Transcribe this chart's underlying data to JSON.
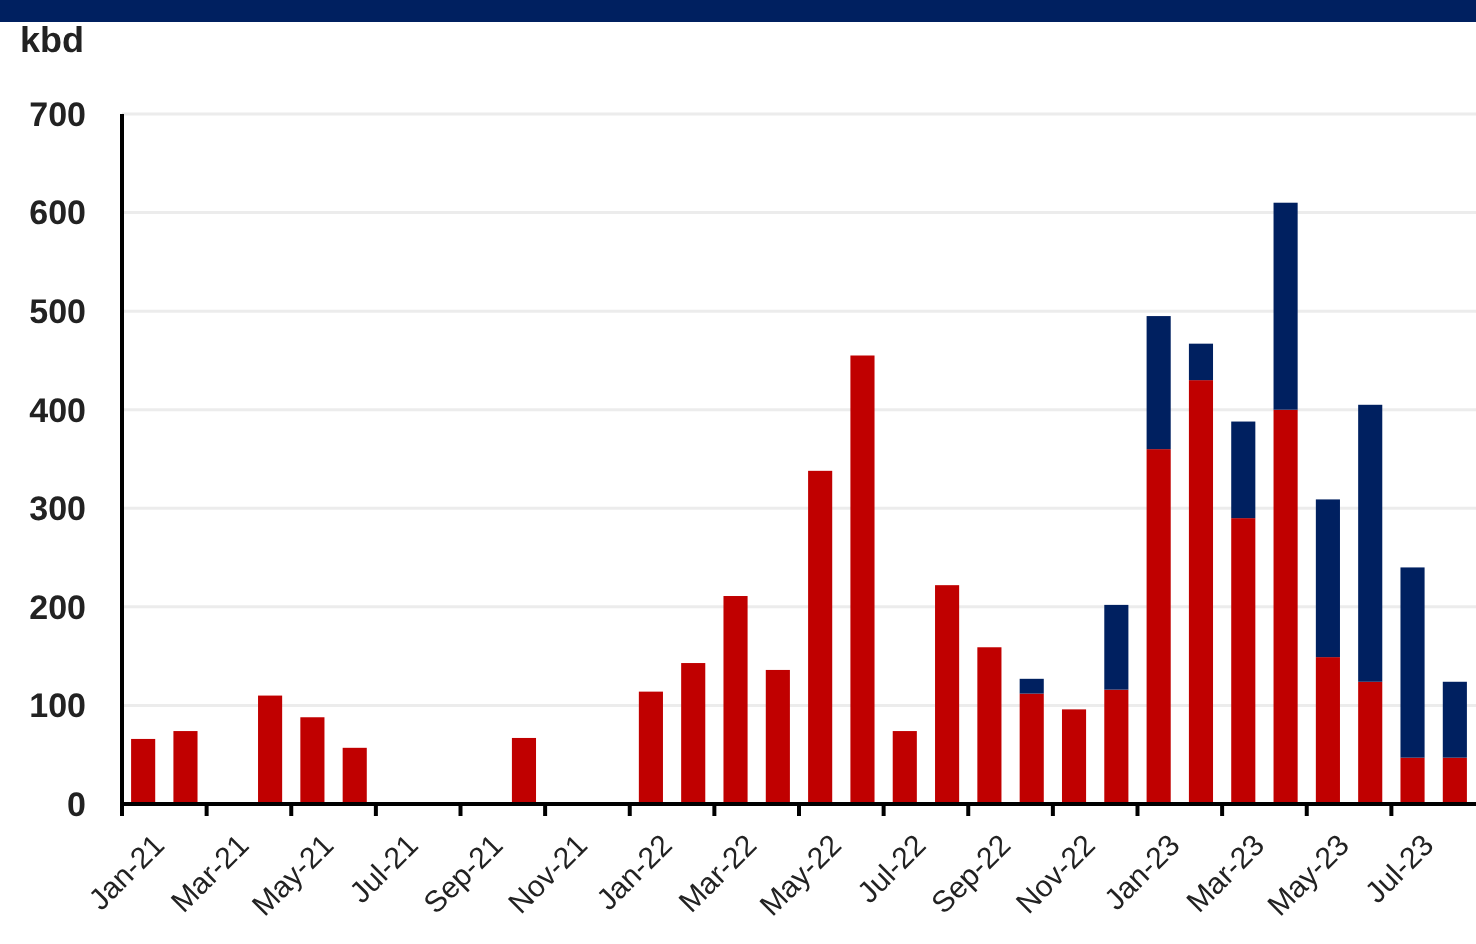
{
  "chart_data": {
    "type": "bar",
    "stacked": true,
    "ylabel": "kbd",
    "categories": [
      "Jan-21",
      null,
      "Mar-21",
      null,
      "May-21",
      null,
      "Jul-21",
      null,
      "Sep-21",
      null,
      "Nov-21",
      null,
      "Jan-22",
      null,
      "Mar-22",
      null,
      "May-22",
      null,
      "Jul-22",
      null,
      "Sep-22",
      null,
      "Nov-22",
      null,
      "Jan-23",
      null,
      "Mar-23",
      null,
      "May-23",
      null,
      "Jul-23",
      null
    ],
    "series": [
      {
        "color": "#c00000",
        "values": [
          66,
          74,
          null,
          110,
          88,
          57,
          null,
          null,
          null,
          67,
          null,
          null,
          114,
          143,
          211,
          136,
          338,
          455,
          74,
          222,
          159,
          112,
          96,
          116,
          360,
          430,
          290,
          400,
          149,
          124,
          47,
          47
        ]
      },
      {
        "color": "#002060",
        "values": [
          null,
          null,
          null,
          null,
          null,
          null,
          null,
          null,
          null,
          null,
          null,
          null,
          null,
          null,
          null,
          null,
          null,
          null,
          null,
          null,
          null,
          15,
          null,
          86,
          135,
          37,
          98,
          210,
          160,
          281,
          193,
          77
        ]
      }
    ],
    "ylim": [
      0,
      700
    ],
    "yticks": [
      0,
      100,
      200,
      300,
      400,
      500,
      600,
      700
    ],
    "grid": "y"
  }
}
